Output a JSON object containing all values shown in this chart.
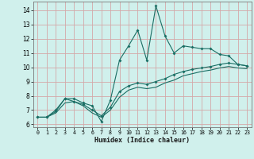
{
  "xlabel": "Humidex (Indice chaleur)",
  "background_color": "#d0f0ec",
  "grid_color": "#d4a8a8",
  "line_color": "#1a6e64",
  "xlim": [
    -0.5,
    23.5
  ],
  "ylim": [
    5.8,
    14.6
  ],
  "xticks": [
    0,
    1,
    2,
    3,
    4,
    5,
    6,
    7,
    8,
    9,
    10,
    11,
    12,
    13,
    14,
    15,
    16,
    17,
    18,
    19,
    20,
    21,
    22,
    23
  ],
  "yticks": [
    6,
    7,
    8,
    9,
    10,
    11,
    12,
    13,
    14
  ],
  "x": [
    0,
    1,
    2,
    3,
    4,
    5,
    6,
    7,
    8,
    9,
    10,
    11,
    12,
    13,
    14,
    15,
    16,
    17,
    18,
    19,
    20,
    21,
    22,
    23
  ],
  "series1": [
    6.5,
    6.5,
    7.0,
    7.8,
    7.8,
    7.5,
    7.3,
    6.2,
    7.7,
    10.5,
    11.5,
    12.6,
    10.5,
    14.3,
    12.2,
    11.0,
    11.5,
    11.4,
    11.3,
    11.3,
    10.9,
    10.8,
    10.2,
    10.1
  ],
  "series2": [
    6.5,
    6.5,
    6.9,
    7.8,
    7.6,
    7.4,
    7.0,
    6.6,
    7.2,
    8.3,
    8.7,
    8.9,
    8.8,
    9.0,
    9.2,
    9.5,
    9.7,
    9.85,
    9.95,
    10.05,
    10.2,
    10.3,
    10.2,
    10.1
  ],
  "series3": [
    6.5,
    6.5,
    6.8,
    7.5,
    7.6,
    7.3,
    6.8,
    6.5,
    7.0,
    7.9,
    8.4,
    8.6,
    8.5,
    8.6,
    8.9,
    9.1,
    9.4,
    9.55,
    9.7,
    9.8,
    9.95,
    10.05,
    9.95,
    9.9
  ]
}
